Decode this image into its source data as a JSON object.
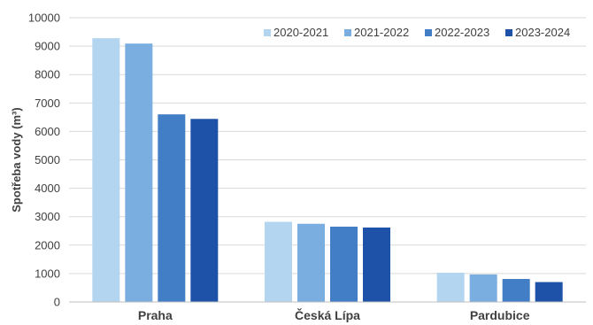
{
  "chart_data": {
    "type": "bar",
    "ylabel": "Spotřeba vody (m³)",
    "ylim": [
      0,
      10000
    ],
    "yticks": [
      0,
      1000,
      2000,
      3000,
      4000,
      5000,
      6000,
      7000,
      8000,
      9000,
      10000
    ],
    "grid": true,
    "legend_position": "top-right",
    "categories": [
      "Praha",
      "Česká Lípa",
      "Pardubice"
    ],
    "series": [
      {
        "name": "2020-2021",
        "color": "#b4d5f0",
        "values": [
          9280,
          2820,
          1030
        ]
      },
      {
        "name": "2021-2022",
        "color": "#7aaee0",
        "values": [
          9090,
          2750,
          970
        ]
      },
      {
        "name": "2022-2023",
        "color": "#427ec5",
        "values": [
          6600,
          2650,
          810
        ]
      },
      {
        "name": "2023-2024",
        "color": "#1d52a8",
        "values": [
          6440,
          2620,
          700
        ]
      }
    ]
  }
}
